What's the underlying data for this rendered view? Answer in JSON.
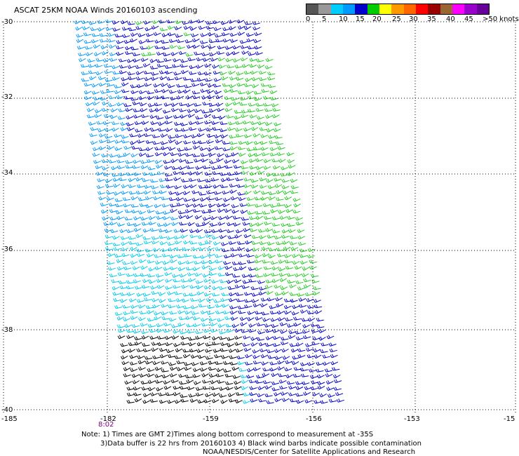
{
  "title": "ASCAT 25KM NOAA Winds 20160103 ascending",
  "legend": {
    "colors": [
      "#555555",
      "#999999",
      "#00ccff",
      "#0099ff",
      "#0000cc",
      "#00cc00",
      "#ffff00",
      "#ff9900",
      "#ff6600",
      "#ff0000",
      "#990000",
      "#996633",
      "#ff00ff",
      "#9900cc",
      "#660099"
    ],
    "labels": [
      "0",
      "5",
      "10",
      "15",
      "20",
      "25",
      "30",
      "35",
      "40",
      "45",
      ">50 knots"
    ]
  },
  "axes": {
    "lat_labels": [
      "-30",
      "-32",
      "-34",
      "-36",
      "-38",
      "-40"
    ],
    "lon_labels": [
      "-185",
      "-182",
      "-159",
      "-156",
      "-153",
      "-15"
    ]
  },
  "time_label": "8:02",
  "notes": {
    "line1": "Note: 1) Times are GMT 2)Times along bottom correspond to measurement at -35S",
    "line2": "3)Data buffer is 22 hrs from 20160103 4) Black wind barbs indicate possible contamination",
    "line3": "NOAA/NESDIS/Center for Satellite Applications and Research"
  },
  "wind_colors": {
    "black": "#000000",
    "cyan": "#00ccee",
    "lightblue": "#0099ff",
    "blue": "#0000cc",
    "green": "#22cc22"
  }
}
